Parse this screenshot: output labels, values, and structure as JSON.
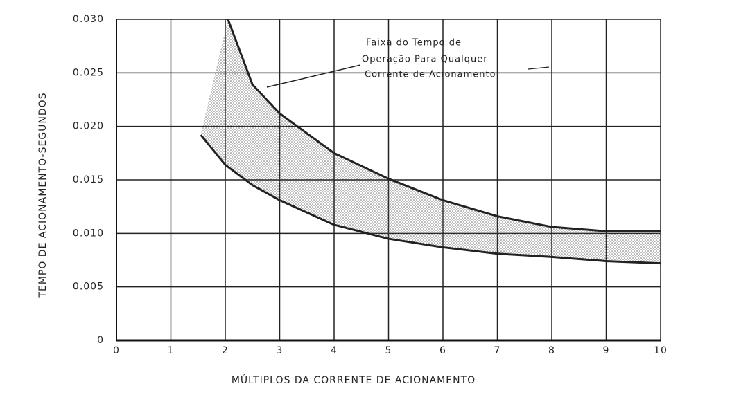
{
  "chart_data": {
    "type": "band",
    "annotation": [
      "Faixa do Tempo de",
      "Operação Para Qualquer",
      "Corrente de Acionamento"
    ],
    "xlabel": "MÚLTIPLOS DA CORRENTE DE ACIONAMENTO",
    "ylabel": "TEMPO DE ACIONAMENTO-SEGUNDOS",
    "xlim": [
      0,
      10
    ],
    "ylim": [
      0,
      0.03
    ],
    "xticks": [
      0,
      1,
      2,
      3,
      4,
      5,
      6,
      7,
      8,
      9,
      10
    ],
    "yticks": [
      0,
      {
        "value": 0.005,
        "label": "0.005"
      },
      {
        "value": 0.01,
        "label": "0.010"
      },
      {
        "value": 0.015,
        "label": "0.015"
      },
      {
        "value": 0.02,
        "label": "0.020"
      },
      {
        "value": 0.025,
        "label": "0.025"
      },
      {
        "value": 0.03,
        "label": "0.030"
      }
    ],
    "grid": true,
    "fill_color": "#999999",
    "series": [
      {
        "color": "#222222",
        "x": [
          2.05,
          2.5,
          3,
          4,
          5,
          6,
          7,
          8,
          9,
          10
        ],
        "values": [
          0.03,
          0.0239,
          0.0212,
          0.0175,
          0.0151,
          0.0131,
          0.0116,
          0.0106,
          0.0102,
          0.0102
        ]
      },
      {
        "color": "#222222",
        "x": [
          1.55,
          2,
          2.5,
          3,
          4,
          5,
          6,
          7,
          8,
          9,
          10
        ],
        "values": [
          0.0192,
          0.0164,
          0.0145,
          0.0131,
          0.0108,
          0.0095,
          0.0087,
          0.0081,
          0.0078,
          0.0074,
          0.0072
        ]
      }
    ]
  }
}
